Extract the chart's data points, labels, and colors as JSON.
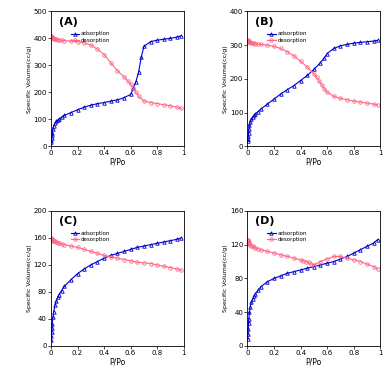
{
  "panels": [
    "A",
    "B",
    "C",
    "D"
  ],
  "panel_labels": [
    "(A)",
    "(B)",
    "(C)",
    "(D)"
  ],
  "legend_adsorption": "adsorption",
  "legend_desorption": "desorption",
  "xlabel": "P/Po",
  "ylabel": "Specific Volume(cc/g)",
  "blue_color": "#0000cc",
  "pink_color": "#ff6688",
  "adsorption_marker": "^",
  "desorption_marker": "o",
  "A": {
    "ylim": [
      0,
      500
    ],
    "yticks": [
      0,
      100,
      200,
      300,
      400,
      500
    ],
    "adsorption_x": [
      0.002,
      0.004,
      0.006,
      0.008,
      0.01,
      0.015,
      0.02,
      0.03,
      0.04,
      0.05,
      0.06,
      0.08,
      0.1,
      0.15,
      0.2,
      0.25,
      0.3,
      0.35,
      0.4,
      0.45,
      0.5,
      0.55,
      0.6,
      0.62,
      0.64,
      0.66,
      0.68,
      0.7,
      0.75,
      0.8,
      0.85,
      0.9,
      0.95,
      0.98
    ],
    "adsorption_y": [
      15,
      22,
      30,
      40,
      50,
      65,
      75,
      85,
      92,
      97,
      100,
      108,
      114,
      125,
      135,
      145,
      152,
      158,
      162,
      167,
      172,
      180,
      192,
      215,
      240,
      275,
      330,
      370,
      388,
      393,
      397,
      400,
      405,
      410
    ],
    "desorption_x": [
      0.002,
      0.004,
      0.006,
      0.008,
      0.01,
      0.015,
      0.02,
      0.03,
      0.04,
      0.05,
      0.06,
      0.08,
      0.1,
      0.15,
      0.2,
      0.25,
      0.3,
      0.35,
      0.4,
      0.45,
      0.5,
      0.55,
      0.58,
      0.6,
      0.62,
      0.64,
      0.66,
      0.7,
      0.75,
      0.8,
      0.85,
      0.9,
      0.95,
      0.98
    ],
    "desorption_y": [
      410,
      408,
      406,
      404,
      402,
      400,
      399,
      397,
      396,
      395,
      394,
      393,
      392,
      390,
      388,
      384,
      375,
      360,
      340,
      310,
      280,
      258,
      242,
      230,
      215,
      200,
      185,
      168,
      162,
      158,
      154,
      150,
      145,
      140
    ]
  },
  "B": {
    "ylim": [
      0,
      400
    ],
    "yticks": [
      0,
      100,
      200,
      300,
      400
    ],
    "adsorption_x": [
      0.002,
      0.004,
      0.006,
      0.008,
      0.01,
      0.015,
      0.02,
      0.03,
      0.04,
      0.05,
      0.06,
      0.08,
      0.1,
      0.15,
      0.2,
      0.25,
      0.3,
      0.35,
      0.4,
      0.45,
      0.5,
      0.55,
      0.58,
      0.6,
      0.65,
      0.7,
      0.75,
      0.8,
      0.85,
      0.9,
      0.95,
      0.98
    ],
    "adsorption_y": [
      15,
      22,
      30,
      40,
      50,
      62,
      72,
      80,
      87,
      92,
      96,
      103,
      110,
      125,
      140,
      155,
      168,
      180,
      195,
      210,
      228,
      248,
      263,
      275,
      290,
      298,
      302,
      306,
      308,
      310,
      312,
      314
    ],
    "desorption_x": [
      0.002,
      0.004,
      0.006,
      0.008,
      0.01,
      0.015,
      0.02,
      0.03,
      0.04,
      0.05,
      0.06,
      0.08,
      0.1,
      0.15,
      0.2,
      0.25,
      0.3,
      0.35,
      0.4,
      0.45,
      0.5,
      0.52,
      0.54,
      0.56,
      0.58,
      0.6,
      0.65,
      0.7,
      0.75,
      0.8,
      0.85,
      0.9,
      0.95,
      0.98
    ],
    "desorption_y": [
      314,
      313,
      312,
      311,
      310,
      309,
      308,
      307,
      306,
      305,
      304,
      303,
      302,
      300,
      296,
      290,
      280,
      268,
      252,
      235,
      215,
      205,
      193,
      182,
      170,
      160,
      148,
      142,
      138,
      134,
      131,
      128,
      125,
      122
    ]
  },
  "C": {
    "ylim": [
      0,
      200
    ],
    "yticks": [
      0,
      40,
      80,
      120,
      160,
      200
    ],
    "adsorption_x": [
      0.002,
      0.004,
      0.006,
      0.008,
      0.01,
      0.015,
      0.02,
      0.03,
      0.04,
      0.05,
      0.06,
      0.08,
      0.1,
      0.15,
      0.2,
      0.25,
      0.3,
      0.35,
      0.4,
      0.45,
      0.5,
      0.55,
      0.6,
      0.65,
      0.7,
      0.75,
      0.8,
      0.85,
      0.9,
      0.95,
      0.98
    ],
    "adsorption_y": [
      8,
      14,
      20,
      27,
      33,
      42,
      50,
      60,
      67,
      72,
      76,
      82,
      88,
      98,
      107,
      114,
      120,
      125,
      130,
      134,
      137,
      140,
      143,
      146,
      148,
      150,
      152,
      154,
      156,
      158,
      160
    ],
    "desorption_x": [
      0.002,
      0.004,
      0.006,
      0.008,
      0.01,
      0.015,
      0.02,
      0.03,
      0.04,
      0.05,
      0.06,
      0.08,
      0.1,
      0.15,
      0.2,
      0.25,
      0.3,
      0.35,
      0.4,
      0.45,
      0.5,
      0.55,
      0.6,
      0.65,
      0.7,
      0.75,
      0.8,
      0.85,
      0.9,
      0.95,
      0.98
    ],
    "desorption_y": [
      160,
      159,
      158,
      158,
      157,
      156,
      156,
      155,
      154,
      153,
      152,
      151,
      150,
      148,
      146,
      143,
      140,
      137,
      134,
      132,
      130,
      128,
      126,
      124,
      123,
      122,
      120,
      118,
      116,
      114,
      112
    ]
  },
  "D": {
    "ylim": [
      0,
      160
    ],
    "yticks": [
      0,
      40,
      80,
      120,
      160
    ],
    "adsorption_x": [
      0.002,
      0.004,
      0.006,
      0.008,
      0.01,
      0.015,
      0.02,
      0.03,
      0.04,
      0.05,
      0.06,
      0.08,
      0.1,
      0.15,
      0.2,
      0.25,
      0.3,
      0.35,
      0.4,
      0.45,
      0.5,
      0.55,
      0.6,
      0.65,
      0.7,
      0.75,
      0.8,
      0.85,
      0.9,
      0.95,
      0.98
    ],
    "adsorption_y": [
      8,
      14,
      20,
      27,
      32,
      40,
      46,
      52,
      56,
      59,
      62,
      66,
      70,
      76,
      80,
      83,
      86,
      88,
      90,
      92,
      94,
      96,
      98,
      100,
      103,
      106,
      110,
      114,
      118,
      122,
      126
    ],
    "desorption_x": [
      0.002,
      0.004,
      0.006,
      0.008,
      0.01,
      0.015,
      0.02,
      0.03,
      0.04,
      0.05,
      0.06,
      0.08,
      0.1,
      0.15,
      0.2,
      0.25,
      0.3,
      0.35,
      0.4,
      0.42,
      0.44,
      0.46,
      0.48,
      0.5,
      0.55,
      0.6,
      0.65,
      0.7,
      0.75,
      0.8,
      0.85,
      0.9,
      0.95,
      0.98
    ],
    "desorption_y": [
      126,
      125,
      124,
      123,
      122,
      121,
      120,
      119,
      118,
      117,
      116,
      115,
      114,
      112,
      110,
      108,
      106,
      104,
      102,
      101,
      100,
      99,
      97,
      96,
      100,
      103,
      106,
      106,
      104,
      102,
      100,
      97,
      94,
      91
    ]
  }
}
